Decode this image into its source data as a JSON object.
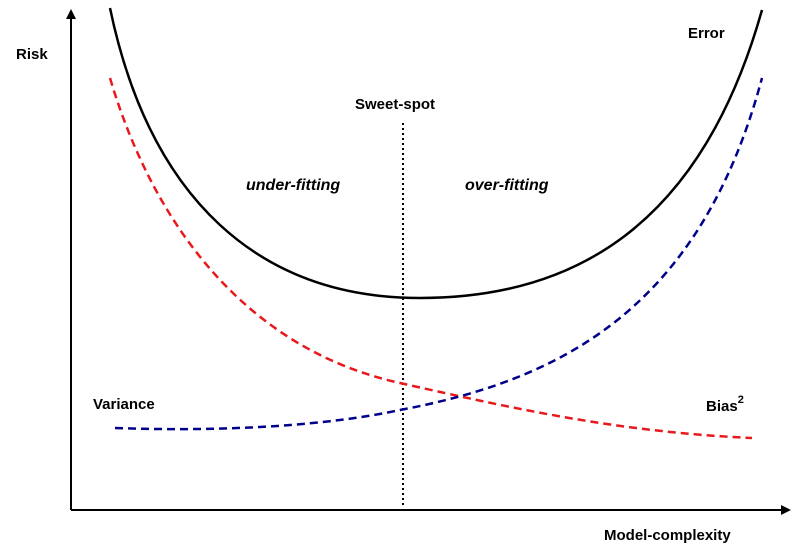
{
  "axes": {
    "y_label": "Risk",
    "x_label": "Model-complexity"
  },
  "labels": {
    "sweet_spot": "Sweet-spot",
    "under_fitting": "under-fitting",
    "over_fitting": "over-fitting",
    "error": "Error",
    "variance": "Variance",
    "bias": "Bias",
    "bias_superscript": "2"
  },
  "colors": {
    "error": "#000000",
    "variance": "#e8191d",
    "bias": "#00008b",
    "sweet_spot_line": "#000000",
    "axis": "#000000"
  }
}
